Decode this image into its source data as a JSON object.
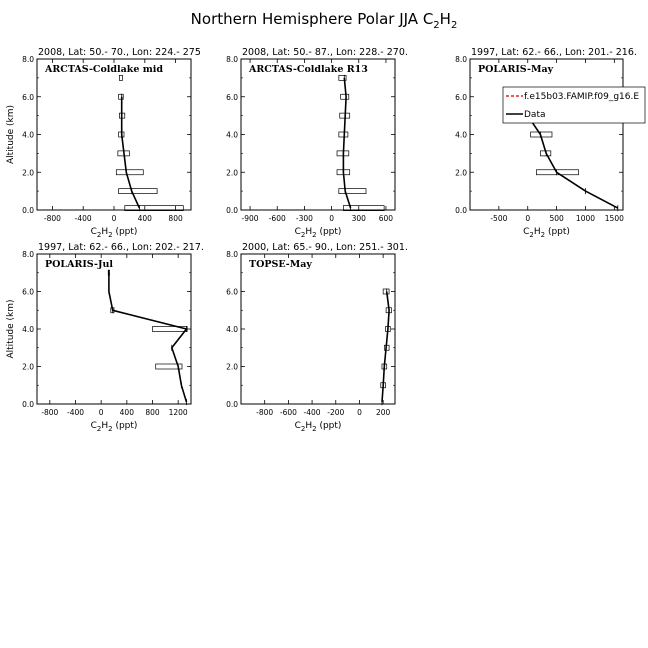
{
  "figure": {
    "title_main": "Northern Hemisphere Polar JJA C",
    "title_sub1": "2",
    "title_mid": "H",
    "title_sub2": "2"
  },
  "chart_data": [
    {
      "type": "line",
      "header": "2008, Lat:  50.- 70., Lon: 224.- 275",
      "panel_label": "ARCTAS-Coldlake mid",
      "xlabel": "C2H2 (ppt)",
      "ylabel": "Altitude (km)",
      "xlim": [
        -1000,
        1000
      ],
      "ylim": [
        0,
        8
      ],
      "xticks": [
        -800,
        -400,
        0,
        400,
        800
      ],
      "yticks": [
        0.0,
        2.0,
        4.0,
        6.0,
        8.0
      ],
      "legend": null,
      "series": [
        {
          "name": "Data",
          "style": "line",
          "x": [
            330,
            230,
            160,
            130,
            100,
            100,
            100
          ],
          "y": [
            0.1,
            1,
            2,
            3,
            4,
            5,
            6
          ]
        },
        {
          "style": "bars",
          "bars": [
            {
              "y": 0.1,
              "lo": 140,
              "hi": 900
            },
            {
              "y": 1,
              "lo": 60,
              "hi": 560
            },
            {
              "y": 2,
              "lo": 30,
              "hi": 380
            },
            {
              "y": 3,
              "lo": 50,
              "hi": 200
            },
            {
              "y": 4,
              "lo": 60,
              "hi": 130
            },
            {
              "y": 5,
              "lo": 70,
              "hi": 140
            },
            {
              "y": 6,
              "lo": 60,
              "hi": 120
            },
            {
              "y": 7,
              "lo": 70,
              "hi": 110
            }
          ]
        }
      ]
    },
    {
      "type": "line",
      "header": "2008, Lat:  50.- 87., Lon: 228.- 270.",
      "panel_label": "ARCTAS-Coldlake R13",
      "xlabel": "C2H2 (ppt)",
      "ylabel": "",
      "xlim": [
        -1000,
        700
      ],
      "ylim": [
        0,
        8
      ],
      "xticks": [
        -900,
        -600,
        -300,
        0,
        300,
        600
      ],
      "yticks": [
        0.0,
        2.0,
        4.0,
        6.0,
        8.0
      ],
      "legend": null,
      "series": [
        {
          "name": "Data",
          "style": "line",
          "x": [
            210,
            150,
            130,
            130,
            140,
            150,
            160,
            140
          ],
          "y": [
            0.1,
            1,
            2,
            3,
            4,
            5,
            6,
            7
          ]
        },
        {
          "style": "bars",
          "bars": [
            {
              "y": 0.1,
              "lo": 130,
              "hi": 580
            },
            {
              "y": 1,
              "lo": 80,
              "hi": 380
            },
            {
              "y": 2,
              "lo": 60,
              "hi": 200
            },
            {
              "y": 3,
              "lo": 60,
              "hi": 190
            },
            {
              "y": 4,
              "lo": 80,
              "hi": 180
            },
            {
              "y": 5,
              "lo": 90,
              "hi": 200
            },
            {
              "y": 6,
              "lo": 100,
              "hi": 190
            },
            {
              "y": 7,
              "lo": 80,
              "hi": 160
            }
          ]
        }
      ]
    },
    {
      "type": "line",
      "header": "1997, Lat: 62.- 66., Lon: 201.- 216.",
      "panel_label": "POLARIS-May",
      "xlabel": "C2H2 (ppt)",
      "ylabel": "",
      "xlim": [
        -1000,
        1650
      ],
      "ylim": [
        0,
        8
      ],
      "xticks": [
        -500,
        0,
        500,
        1000,
        1500
      ],
      "yticks": [
        0.0,
        2.0,
        4.0,
        6.0,
        8.0
      ],
      "legend": {
        "model_label": "f.e15b03.FAMIP.f09_g16.E",
        "data_label": "Data",
        "model_color": "#cc0000"
      },
      "series": [
        {
          "name": "Data",
          "style": "line",
          "x": [
            1560,
            1000,
            500,
            320,
            220,
            0,
            0
          ],
          "y": [
            0.1,
            1,
            2,
            3,
            4,
            5,
            6
          ]
        },
        {
          "style": "bars",
          "bars": [
            {
              "y": 2,
              "lo": 150,
              "hi": 880
            },
            {
              "y": 3,
              "lo": 220,
              "hi": 400
            },
            {
              "y": 4,
              "lo": 50,
              "hi": 420
            }
          ]
        }
      ]
    },
    {
      "type": "line",
      "header": "1997, Lat: 62.- 66., Lon: 202.- 217.",
      "panel_label": "POLARIS-Jul",
      "xlabel": "C2H2 (ppt)",
      "ylabel": "Altitude (km)",
      "xlim": [
        -1000,
        1400
      ],
      "ylim": [
        0,
        8
      ],
      "xticks": [
        -800,
        -400,
        0,
        400,
        800,
        1200
      ],
      "yticks": [
        0.0,
        2.0,
        4.0,
        6.0,
        8.0
      ],
      "legend": null,
      "series": [
        {
          "name": "Data",
          "style": "line",
          "x": [
            1330,
            1250,
            1200,
            1100,
            1330,
            180,
            120,
            120
          ],
          "y": [
            0.1,
            1,
            2,
            3,
            4,
            5,
            6,
            7
          ]
        },
        {
          "style": "bars",
          "bars": [
            {
              "y": 2,
              "lo": 850,
              "hi": 1260
            },
            {
              "y": 4,
              "lo": 800,
              "hi": 1340
            },
            {
              "y": 5,
              "lo": 150,
              "hi": 200
            },
            {
              "y": 7,
              "lo": 110,
              "hi": 130
            }
          ]
        }
      ]
    },
    {
      "type": "line",
      "header": "2000, Lat: 65.- 90., Lon: 251.- 301.",
      "panel_label": "TOPSE-May",
      "xlabel": "C2H2 (ppt)",
      "ylabel": "",
      "xlim": [
        -1000,
        300
      ],
      "ylim": [
        0,
        8
      ],
      "xticks": [
        -800,
        -600,
        -400,
        -200,
        0,
        200
      ],
      "yticks": [
        0.0,
        2.0,
        4.0,
        6.0,
        8.0
      ],
      "legend": null,
      "series": [
        {
          "name": "Data",
          "style": "line",
          "x": [
            190,
            200,
            210,
            225,
            240,
            250,
            230
          ],
          "y": [
            0.1,
            1,
            2,
            3,
            4,
            5,
            6
          ]
        },
        {
          "style": "bars",
          "bars": [
            {
              "y": 1,
              "lo": 180,
              "hi": 220
            },
            {
              "y": 2,
              "lo": 190,
              "hi": 230
            },
            {
              "y": 3,
              "lo": 210,
              "hi": 250
            },
            {
              "y": 4,
              "lo": 220,
              "hi": 260
            },
            {
              "y": 5,
              "lo": 225,
              "hi": 270
            },
            {
              "y": 6,
              "lo": 200,
              "hi": 250
            }
          ]
        }
      ]
    }
  ]
}
